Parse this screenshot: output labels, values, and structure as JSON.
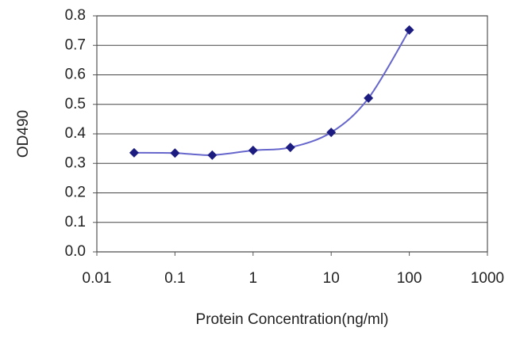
{
  "chart_data": {
    "type": "line",
    "xlabel": "Protein Concentration(ng/ml)",
    "ylabel": "OD490",
    "x": [
      0.03,
      0.1,
      0.3,
      1,
      3,
      10,
      30,
      100
    ],
    "series": [
      {
        "name": "OD490",
        "color": "#1c1c80",
        "line_color": "#6666cc",
        "values": [
          0.336,
          0.335,
          0.328,
          0.344,
          0.354,
          0.405,
          0.521,
          0.752
        ]
      }
    ],
    "xscale": "log",
    "xlim": [
      0.01,
      1000
    ],
    "xticks": [
      0.01,
      0.1,
      1,
      10,
      100,
      1000
    ],
    "ylim": [
      0,
      0.8
    ],
    "yticks": [
      {
        "value": 0,
        "label": "0.0"
      },
      0.1,
      0.2,
      0.3,
      0.4,
      0.5,
      0.6,
      0.7,
      0.8
    ],
    "grid": true,
    "smooth": true
  }
}
